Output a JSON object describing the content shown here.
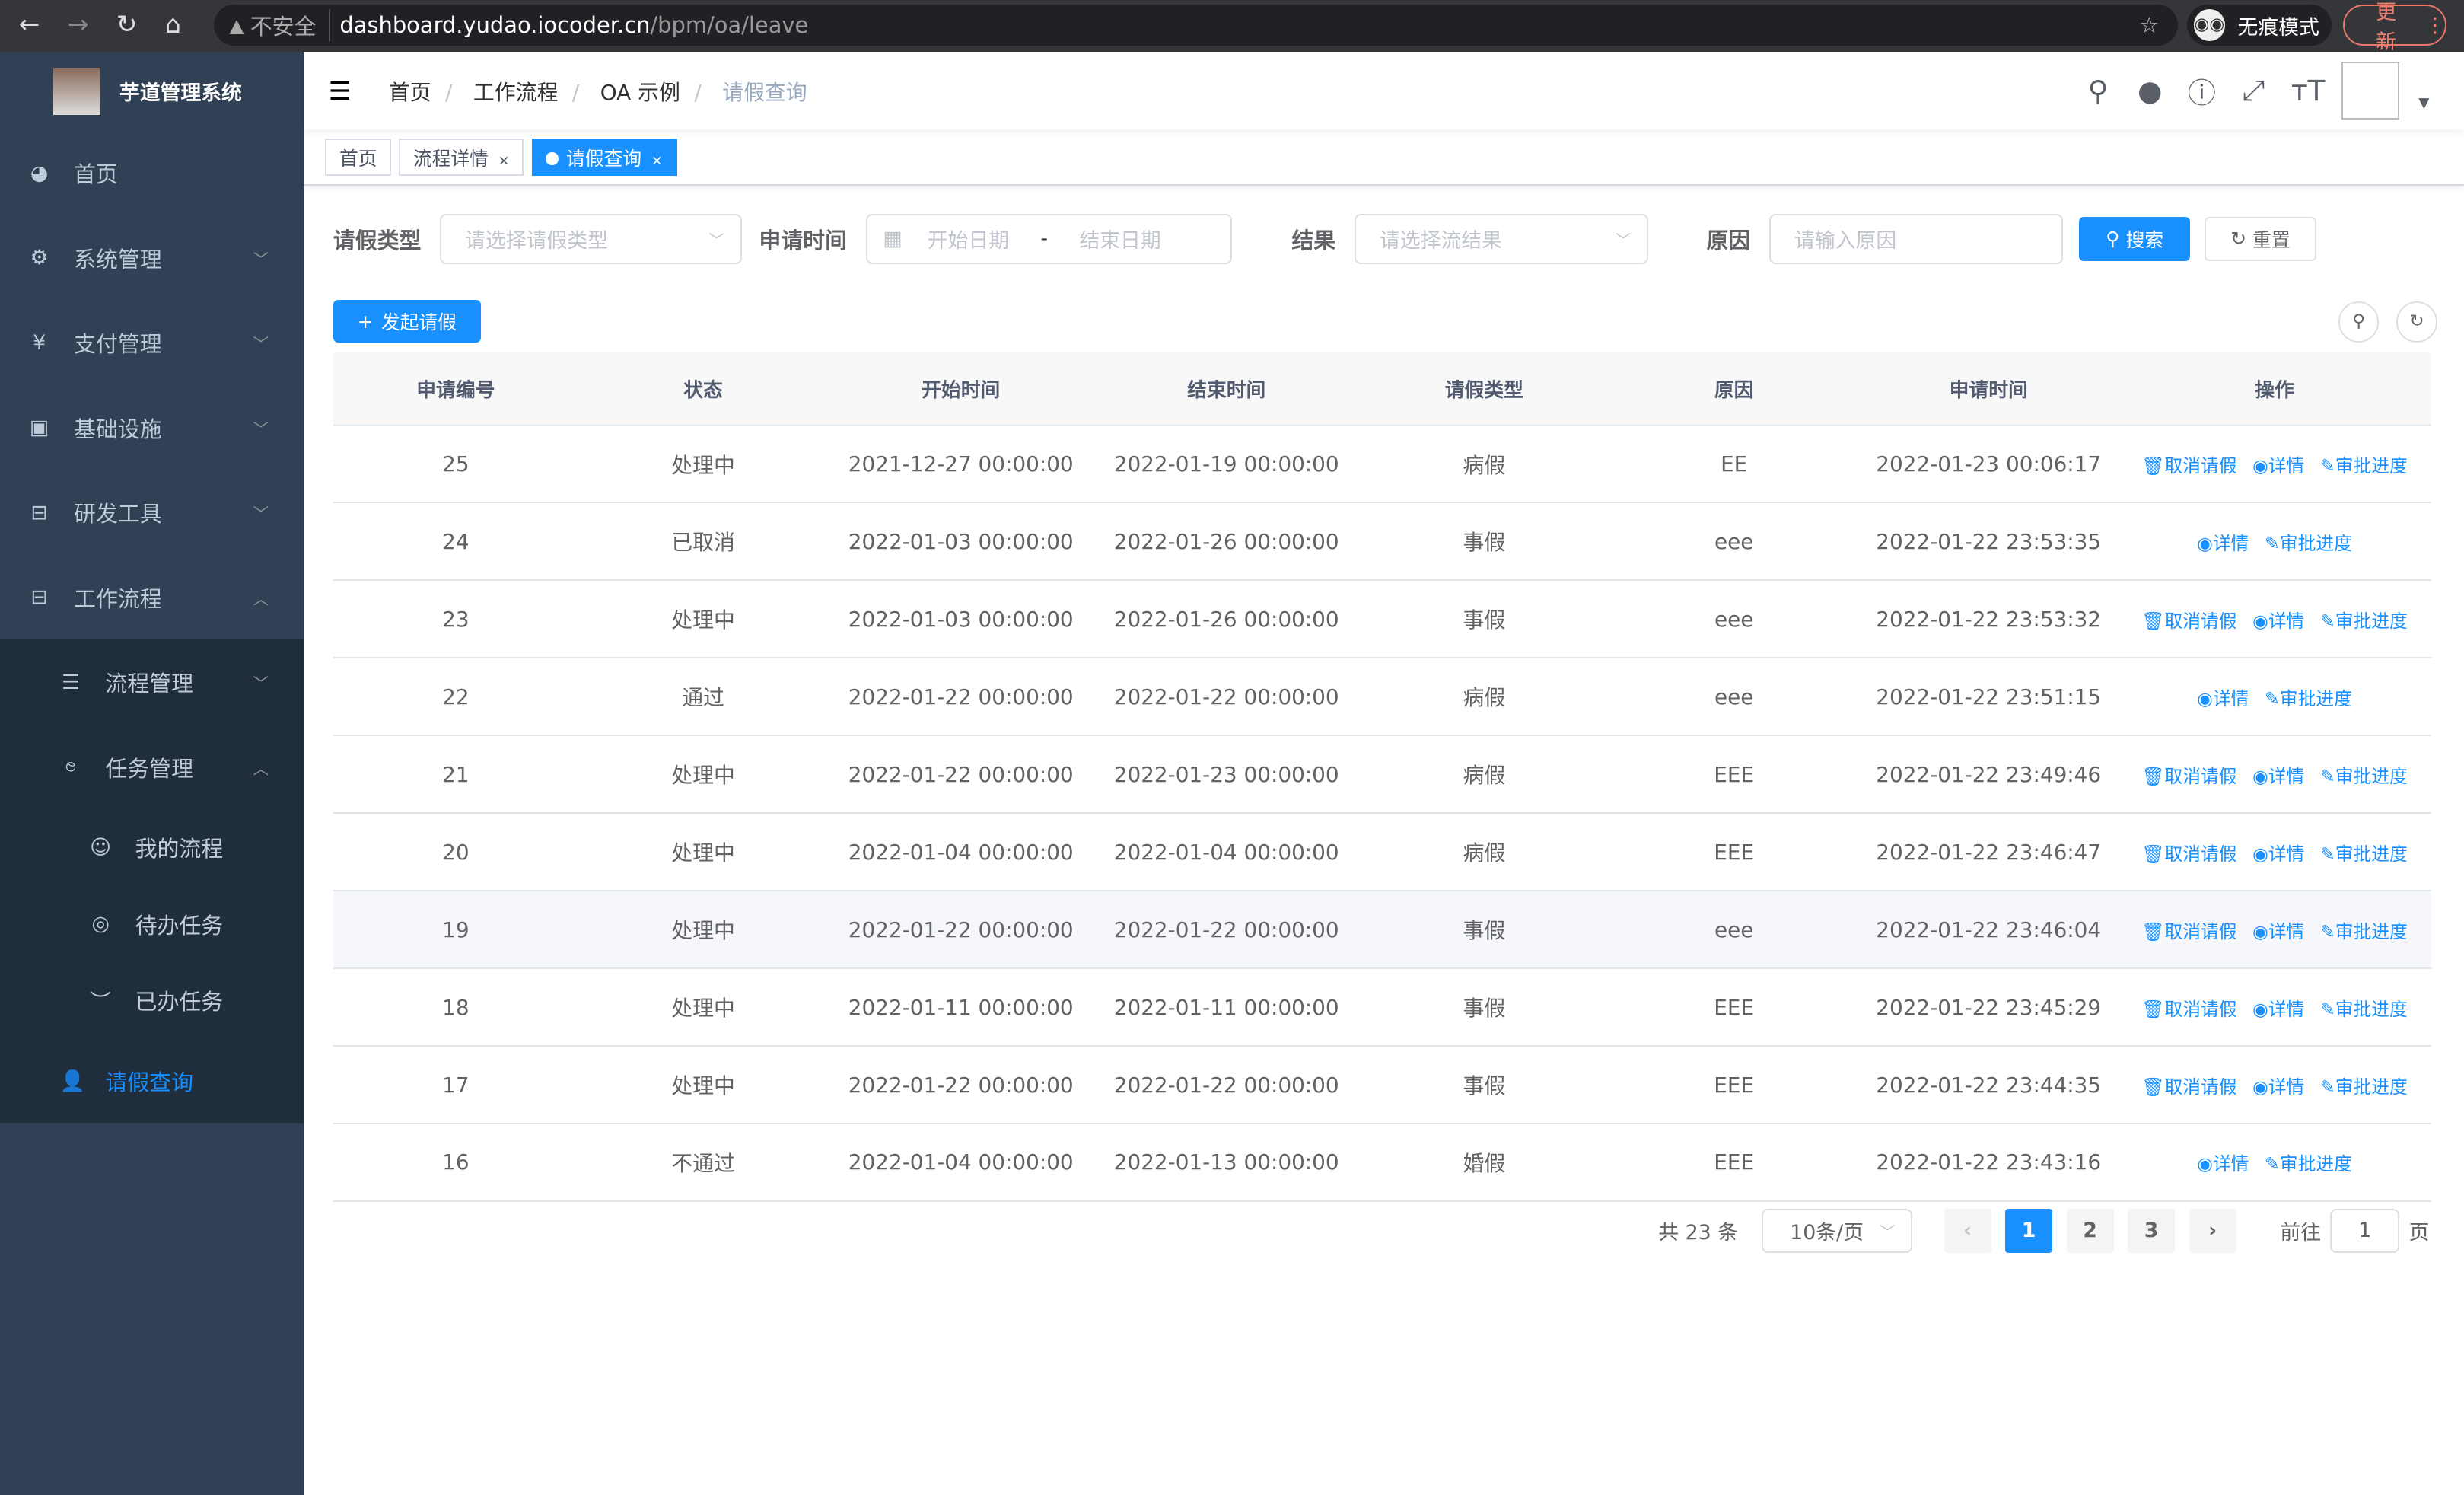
{
  "browser": {
    "insecure": "不安全",
    "host": "dashboard.yudao.iocoder.cn",
    "path": "/bpm/oa/leave",
    "incognito": "无痕模式",
    "update": "更新"
  },
  "sidebar": {
    "title": "芋道管理系统",
    "items": [
      {
        "label": "首页",
        "icon": "dashboard-icon"
      },
      {
        "label": "系统管理",
        "icon": "gear-icon"
      },
      {
        "label": "支付管理",
        "icon": "yen-icon"
      },
      {
        "label": "基础设施",
        "icon": "monitor-icon"
      },
      {
        "label": "研发工具",
        "icon": "toolbox-icon"
      },
      {
        "label": "工作流程",
        "icon": "toolbox-icon"
      }
    ],
    "workflow": {
      "process_mgmt": "流程管理",
      "task_mgmt": "任务管理",
      "my_process": "我的流程",
      "todo": "待办任务",
      "done": "已办任务",
      "leave": "请假查询"
    }
  },
  "header": {
    "breadcrumb": [
      "首页",
      "工作流程",
      "OA 示例",
      "请假查询"
    ]
  },
  "tabs": [
    {
      "label": "首页"
    },
    {
      "label": "流程详情"
    },
    {
      "label": "请假查询"
    }
  ],
  "filters": {
    "type_label": "请假类型",
    "type_placeholder": "请选择请假类型",
    "time_label": "申请时间",
    "start_placeholder": "开始日期",
    "range_sep": "-",
    "end_placeholder": "结束日期",
    "result_label": "结果",
    "result_placeholder": "请选择流结果",
    "reason_label": "原因",
    "reason_placeholder": "请输入原因",
    "search": "搜索",
    "reset": "重置"
  },
  "add_button": "发起请假",
  "table": {
    "columns": [
      "申请编号",
      "状态",
      "开始时间",
      "结束时间",
      "请假类型",
      "原因",
      "申请时间",
      "操作"
    ],
    "rows": [
      [
        "25",
        "处理中",
        "2021-12-27 00:00:00",
        "2022-01-19 00:00:00",
        "病假",
        "EE",
        "2022-01-23 00:06:17",
        true
      ],
      [
        "24",
        "已取消",
        "2022-01-03 00:00:00",
        "2022-01-26 00:00:00",
        "事假",
        "eee",
        "2022-01-22 23:53:35",
        false
      ],
      [
        "23",
        "处理中",
        "2022-01-03 00:00:00",
        "2022-01-26 00:00:00",
        "事假",
        "eee",
        "2022-01-22 23:53:32",
        true
      ],
      [
        "22",
        "通过",
        "2022-01-22 00:00:00",
        "2022-01-22 00:00:00",
        "病假",
        "eee",
        "2022-01-22 23:51:15",
        false
      ],
      [
        "21",
        "处理中",
        "2022-01-22 00:00:00",
        "2022-01-23 00:00:00",
        "病假",
        "EEE",
        "2022-01-22 23:49:46",
        true
      ],
      [
        "20",
        "处理中",
        "2022-01-04 00:00:00",
        "2022-01-04 00:00:00",
        "病假",
        "EEE",
        "2022-01-22 23:46:47",
        true
      ],
      [
        "19",
        "处理中",
        "2022-01-22 00:00:00",
        "2022-01-22 00:00:00",
        "事假",
        "eee",
        "2022-01-22 23:46:04",
        true
      ],
      [
        "18",
        "处理中",
        "2022-01-11 00:00:00",
        "2022-01-11 00:00:00",
        "事假",
        "EEE",
        "2022-01-22 23:45:29",
        true
      ],
      [
        "17",
        "处理中",
        "2022-01-22 00:00:00",
        "2022-01-22 00:00:00",
        "事假",
        "EEE",
        "2022-01-22 23:44:35",
        true
      ],
      [
        "16",
        "不通过",
        "2022-01-04 00:00:00",
        "2022-01-13 00:00:00",
        "婚假",
        "EEE",
        "2022-01-22 23:43:16",
        false
      ]
    ],
    "actions": {
      "cancel": "取消请假",
      "detail": "详情",
      "progress": "审批进度"
    }
  },
  "pagination": {
    "total": "共 23 条",
    "page_size": "10条/页",
    "pages": [
      "1",
      "2",
      "3"
    ],
    "current": "1",
    "goto_label": "前往",
    "goto_value": "1",
    "page_unit": "页"
  },
  "colors": {
    "sidebar": "#304156",
    "submenu": "#1f2d3d",
    "primary": "#1890ff"
  }
}
